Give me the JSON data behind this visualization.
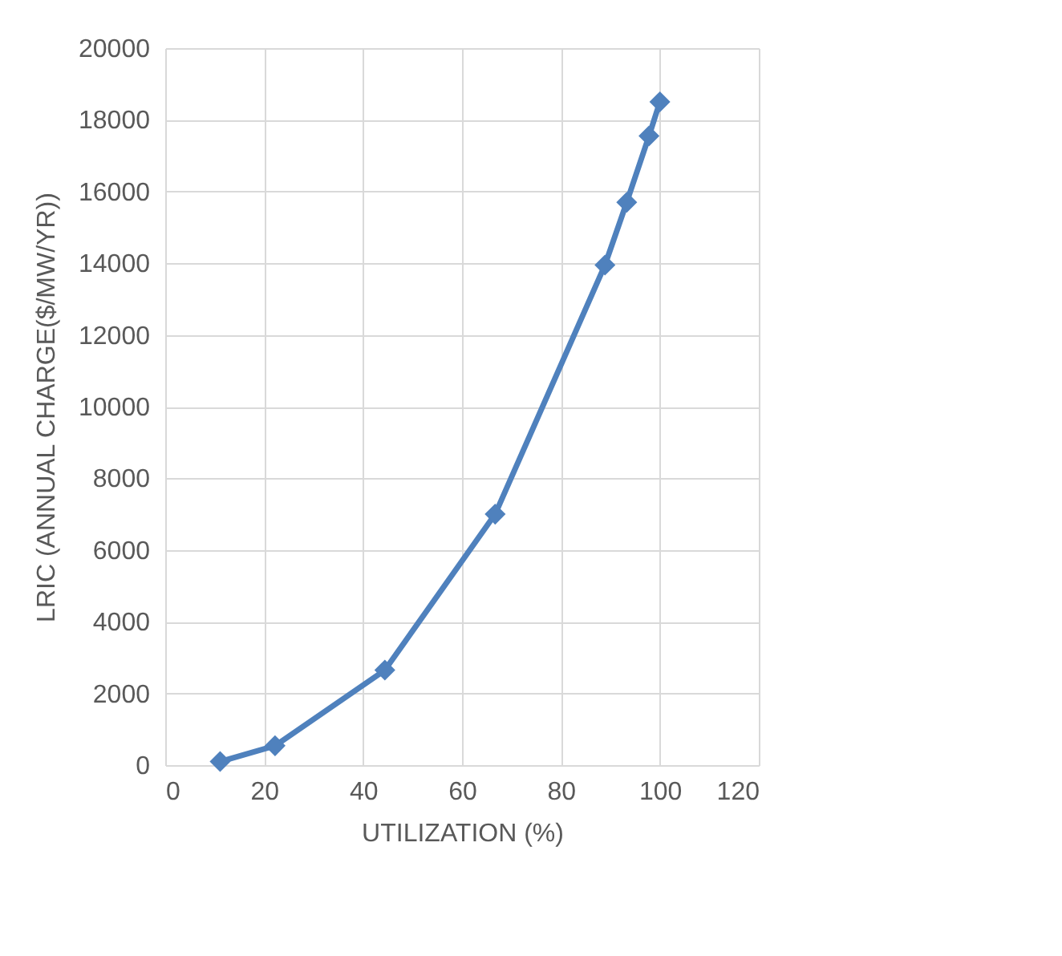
{
  "chart_data": {
    "type": "line",
    "xlabel": "UTILIZATION (%)",
    "ylabel": "LRIC (ANNUAL CHARGE($/MW/YR))",
    "x": [
      11.1,
      22.2,
      44.4,
      66.7,
      88.9,
      93.3,
      97.8,
      100
    ],
    "series": [
      {
        "color": "#4f81bd",
        "values": [
          100,
          540,
          2650,
          7000,
          13950,
          15700,
          17550,
          18500
        ]
      }
    ],
    "xlim": [
      0,
      120
    ],
    "xticks": [
      0,
      20,
      40,
      60,
      80,
      100,
      120
    ],
    "ylim": [
      0,
      20000
    ],
    "yticks": [
      0,
      2000,
      4000,
      6000,
      8000,
      10000,
      12000,
      14000,
      16000,
      18000,
      20000
    ],
    "grid": true,
    "marker": "diamond",
    "line_style": "solid"
  }
}
